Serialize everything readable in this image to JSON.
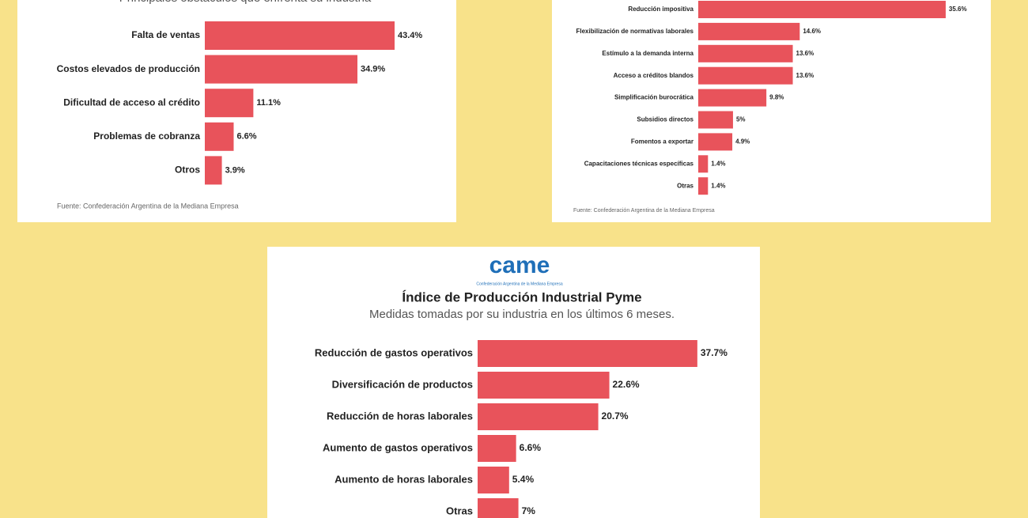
{
  "chart_data": [
    {
      "type": "bar",
      "subtitle": "Principales obstáculos que enfrenta su industria",
      "categories": [
        "Falta de ventas",
        "Costos elevados de producción",
        "Dificultad de acceso al crédito",
        "Problemas de cobranza",
        "Otros"
      ],
      "values": [
        43.4,
        34.9,
        11.1,
        6.6,
        3.9
      ],
      "value_labels": [
        "43.4%",
        "34.9%",
        "11.1%",
        "6.6%",
        "3.9%"
      ],
      "color": "#e8535b",
      "source": "Fuente: Confederación Argentina de la Mediana Empresa"
    },
    {
      "type": "bar",
      "categories": [
        "Reducción impositiva",
        "Flexibilización de normativas laborales",
        "Estímulo a la demanda interna",
        "Acceso a créditos blandos",
        "Simplificación burocrática",
        "Subsidios directos",
        "Fomentos a exportar",
        "Capacitaciones técnicas específicas",
        "Otras"
      ],
      "values": [
        35.6,
        14.6,
        13.6,
        13.6,
        9.8,
        5,
        4.9,
        1.4,
        1.4
      ],
      "value_labels": [
        "35.6%",
        "14.6%",
        "13.6%",
        "13.6%",
        "9.8%",
        "5%",
        "4.9%",
        "1.4%",
        "1.4%"
      ],
      "color": "#e8535b",
      "source": "Fuente: Confederación Argentina de la Mediana Empresa"
    },
    {
      "type": "bar",
      "logo": "came",
      "logo_caption": "Confederación Argentina de la Mediana Empresa",
      "title": "Índice de Producción Industrial Pyme",
      "subtitle": "Medidas tomadas por su industria en los últimos 6 meses.",
      "categories": [
        "Reducción de gastos operativos",
        "Diversificación de productos",
        "Reducción de horas laborales",
        "Aumento de gastos operativos",
        "Aumento de horas laborales",
        "Otras"
      ],
      "values": [
        37.7,
        22.6,
        20.7,
        6.6,
        5.4,
        7
      ],
      "value_labels": [
        "37.7%",
        "22.6%",
        "20.7%",
        "6.6%",
        "5.4%",
        "7%"
      ],
      "color": "#e8535b"
    }
  ]
}
